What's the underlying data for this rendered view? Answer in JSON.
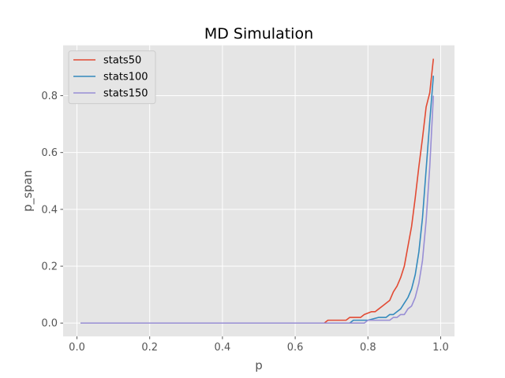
{
  "chart_data": {
    "type": "line",
    "title": "MD Simulation",
    "xlabel": "p",
    "ylabel": "p_span",
    "xlim": [
      -0.038,
      1.038
    ],
    "ylim": [
      -0.047,
      0.977
    ],
    "xticks": [
      0.0,
      0.2,
      0.4,
      0.6,
      0.8,
      1.0
    ],
    "xtick_labels": [
      "0.0",
      "0.2",
      "0.4",
      "0.6",
      "0.8",
      "1.0"
    ],
    "yticks": [
      0.0,
      0.2,
      0.4,
      0.6,
      0.8
    ],
    "ytick_labels": [
      "0.0",
      "0.2",
      "0.4",
      "0.6",
      "0.8"
    ],
    "grid": true,
    "legend_position": "top-left",
    "background": "#E5E5E5",
    "series": [
      {
        "name": "stats50",
        "color": "#E24A33",
        "x": [
          0.01,
          0.68,
          0.69,
          0.74,
          0.75,
          0.78,
          0.79,
          0.81,
          0.82,
          0.83,
          0.84,
          0.85,
          0.86,
          0.87,
          0.88,
          0.89,
          0.9,
          0.91,
          0.92,
          0.93,
          0.94,
          0.95,
          0.96,
          0.97,
          0.98
        ],
        "y": [
          0.0,
          0.0,
          0.01,
          0.01,
          0.02,
          0.02,
          0.03,
          0.04,
          0.04,
          0.05,
          0.06,
          0.07,
          0.08,
          0.11,
          0.13,
          0.16,
          0.2,
          0.27,
          0.34,
          0.44,
          0.55,
          0.65,
          0.76,
          0.81,
          0.93
        ]
      },
      {
        "name": "stats100",
        "color": "#348ABD",
        "x": [
          0.01,
          0.75,
          0.76,
          0.79,
          0.8,
          0.83,
          0.84,
          0.85,
          0.86,
          0.87,
          0.88,
          0.89,
          0.9,
          0.91,
          0.92,
          0.93,
          0.94,
          0.95,
          0.96,
          0.97,
          0.98
        ],
        "y": [
          0.0,
          0.0,
          0.01,
          0.01,
          0.01,
          0.02,
          0.02,
          0.02,
          0.03,
          0.03,
          0.04,
          0.05,
          0.07,
          0.09,
          0.12,
          0.17,
          0.25,
          0.37,
          0.54,
          0.71,
          0.87
        ]
      },
      {
        "name": "stats150",
        "color": "#988ED5",
        "x": [
          0.01,
          0.79,
          0.8,
          0.86,
          0.87,
          0.88,
          0.89,
          0.9,
          0.91,
          0.92,
          0.93,
          0.94,
          0.95,
          0.96,
          0.97,
          0.98
        ],
        "y": [
          0.0,
          0.0,
          0.01,
          0.01,
          0.02,
          0.02,
          0.03,
          0.03,
          0.05,
          0.06,
          0.09,
          0.14,
          0.22,
          0.36,
          0.55,
          0.8
        ]
      }
    ]
  }
}
